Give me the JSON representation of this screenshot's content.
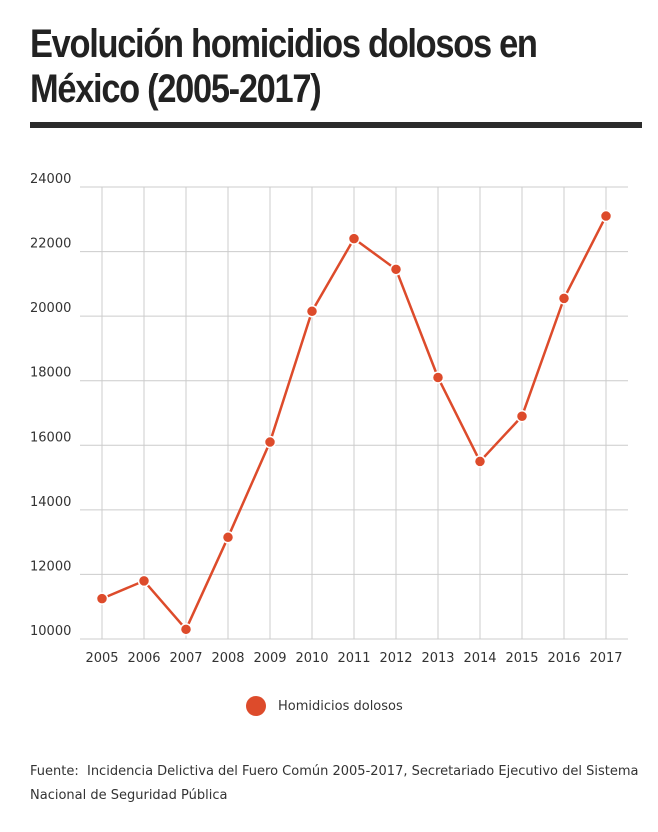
{
  "title": "Evolución homicidios dolosos en México (2005-2017)",
  "legend": {
    "label": "Homidicios dolosos"
  },
  "source": "Fuente:  Incidencia Delictiva del Fuero Común 2005-2017, Secretariado Ejecutivo del Sistema Nacional de Seguridad Pública",
  "colors": {
    "series": "#dd4b2b",
    "grid": "#cccccc",
    "rule": "#2b2b2b"
  },
  "chart_data": {
    "type": "line",
    "title": "Evolución homicidios dolosos en México (2005-2017)",
    "xlabel": "",
    "ylabel": "",
    "ylim": [
      10000,
      24000
    ],
    "yticks": [
      10000,
      12000,
      14000,
      16000,
      18000,
      20000,
      22000,
      24000
    ],
    "grid": true,
    "legend_position": "bottom",
    "categories": [
      "2005",
      "2006",
      "2007",
      "2008",
      "2009",
      "2010",
      "2011",
      "2012",
      "2013",
      "2014",
      "2015",
      "2016",
      "2017"
    ],
    "series": [
      {
        "name": "Homidicios dolosos",
        "values": [
          11250,
          11800,
          10300,
          13150,
          16100,
          20150,
          22400,
          21450,
          18100,
          15500,
          16900,
          20550,
          23100
        ]
      }
    ]
  }
}
